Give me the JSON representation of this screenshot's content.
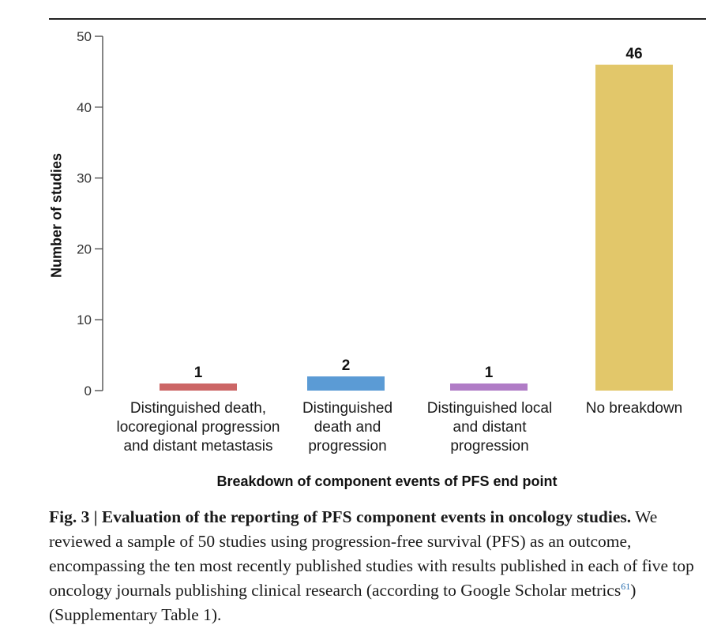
{
  "chart_data": {
    "type": "bar",
    "categories": [
      "Distinguished death,\nlocoregional progression\nand distant metastasis",
      "Distinguished\ndeath and\nprogression",
      "Distinguished local\nand distant\nprogression",
      "No breakdown"
    ],
    "values": [
      1,
      2,
      1,
      46
    ],
    "data_labels": [
      "1",
      "2",
      "1",
      "46"
    ],
    "colors": [
      "#cc6666",
      "#5b9bd5",
      "#b07cc6",
      "#e2c76a"
    ],
    "xlabel": "Breakdown of component events of PFS end point",
    "ylabel": "Number of studies",
    "ylim": [
      0,
      50
    ],
    "yticks": [
      0,
      10,
      20,
      30,
      40,
      50
    ],
    "grid": false
  },
  "caption": {
    "title": "Fig. 3 | Evaluation of the reporting of PFS component events in oncology studies.",
    "text_before_ref": " We reviewed a sample of 50 studies using progression-free survival (PFS) as an outcome, encompassing the ten most recently published studies with results published in each of five top oncology journals publishing clinical research (according to Google Scholar metrics",
    "ref": "61",
    "text_after_ref": ") (Supplementary Table 1)."
  }
}
